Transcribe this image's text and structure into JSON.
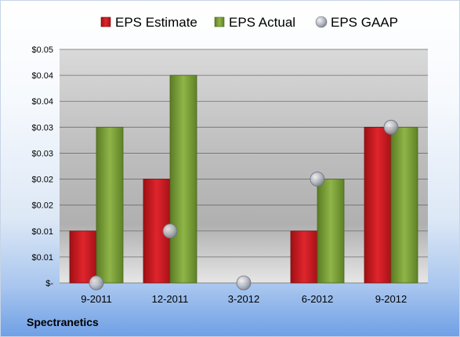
{
  "company": "Spectranetics",
  "chart_data": {
    "type": "bar",
    "categories": [
      "9-2011",
      "12-2011",
      "3-2012",
      "6-2012",
      "9-2012"
    ],
    "series": [
      {
        "name": "EPS Estimate",
        "kind": "bar",
        "values": [
          0.01,
          0.02,
          null,
          0.01,
          0.03
        ]
      },
      {
        "name": "EPS Actual",
        "kind": "bar",
        "values": [
          0.03,
          0.04,
          null,
          0.02,
          0.03
        ]
      },
      {
        "name": "EPS GAAP",
        "kind": "scatter",
        "values": [
          0.0,
          0.01,
          0.0,
          0.02,
          0.03
        ]
      }
    ],
    "ylim": [
      0,
      0.045
    ],
    "y_ticks": [
      0,
      0.005,
      0.01,
      0.015,
      0.02,
      0.025,
      0.03,
      0.035,
      0.04,
      0.045
    ],
    "y_tick_labels": [
      "$-",
      "$0.01",
      "$0.01",
      "$0.02",
      "$0.02",
      "$0.03",
      "$0.03",
      "$0.04",
      "$0.04",
      "$0.05"
    ],
    "grid": true,
    "legend_position": "top",
    "colors": {
      "EPS Estimate": "#cc1f26",
      "EPS Actual": "#7ea33a",
      "EPS GAAP": "#b8bcc4"
    }
  }
}
